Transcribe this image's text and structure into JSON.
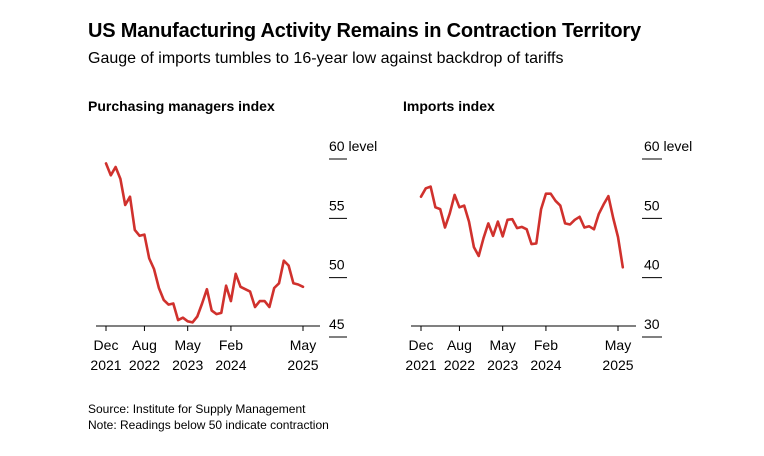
{
  "title": "US Manufacturing Activity Remains in Contraction Territory",
  "subtitle": "Gauge of imports tumbles to 16-year low against backdrop of tariffs",
  "footer": {
    "source": "Source: Institute for Supply Management",
    "note": "Note: Readings below 50 indicate contraction"
  },
  "colors": {
    "line": "#d0312d",
    "axis": "#000000"
  },
  "chart_data": [
    {
      "type": "line",
      "title": "Purchasing managers index",
      "ylim": [
        45,
        60
      ],
      "y_ticks": [
        {
          "value": 60,
          "label": "60 level"
        },
        {
          "value": 55,
          "label": "55"
        },
        {
          "value": 50,
          "label": "50"
        },
        {
          "value": 45,
          "label": "45"
        }
      ],
      "x_ticks": [
        {
          "month": "Dec",
          "year": "2021",
          "index": 0
        },
        {
          "month": "Aug",
          "year": "2022",
          "index": 8
        },
        {
          "month": "May",
          "year": "2023",
          "index": 17
        },
        {
          "month": "Feb",
          "year": "2024",
          "index": 26
        },
        {
          "month": "May",
          "year": "2025",
          "index": 41
        }
      ],
      "x_start": "2021-12",
      "series": [
        {
          "values": [
            58.7,
            57.7,
            58.4,
            57.4,
            55.2,
            55.9,
            53.1,
            52.6,
            52.7,
            50.7,
            49.8,
            48.2,
            47.2,
            46.8,
            46.9,
            45.5,
            45.7,
            45.4,
            45.3,
            45.8,
            46.9,
            48.1,
            46.3,
            46.0,
            46.1,
            48.4,
            47.1,
            49.4,
            48.3,
            48.1,
            47.9,
            46.6,
            47.1,
            47.1,
            46.6,
            48.2,
            48.6,
            50.5,
            50.1,
            48.6,
            48.5,
            48.3
          ]
        }
      ]
    },
    {
      "type": "line",
      "title": "Imports index",
      "ylim": [
        30,
        60
      ],
      "y_ticks": [
        {
          "value": 60,
          "label": "60 level"
        },
        {
          "value": 50,
          "label": "50"
        },
        {
          "value": 40,
          "label": "40"
        },
        {
          "value": 30,
          "label": "30"
        }
      ],
      "x_ticks": [
        {
          "month": "Dec",
          "year": "2021",
          "index": 0
        },
        {
          "month": "Aug",
          "year": "2022",
          "index": 8
        },
        {
          "month": "May",
          "year": "2023",
          "index": 17
        },
        {
          "month": "Feb",
          "year": "2024",
          "index": 26
        },
        {
          "month": "May",
          "year": "2025",
          "index": 41
        }
      ],
      "x_start": "2021-12",
      "series": [
        {
          "values": [
            51.8,
            53.2,
            53.5,
            50.0,
            49.7,
            46.6,
            49.0,
            52.1,
            50.0,
            50.3,
            47.6,
            43.3,
            41.8,
            44.8,
            47.3,
            45.2,
            47.6,
            45.1,
            47.9,
            48.0,
            46.5,
            46.7,
            46.3,
            43.8,
            43.9,
            49.7,
            52.3,
            52.3,
            51.1,
            50.3,
            47.3,
            47.1,
            47.9,
            48.4,
            46.6,
            46.8,
            46.3,
            48.9,
            50.5,
            51.9,
            48.2,
            45.0,
            39.9
          ]
        }
      ]
    }
  ]
}
